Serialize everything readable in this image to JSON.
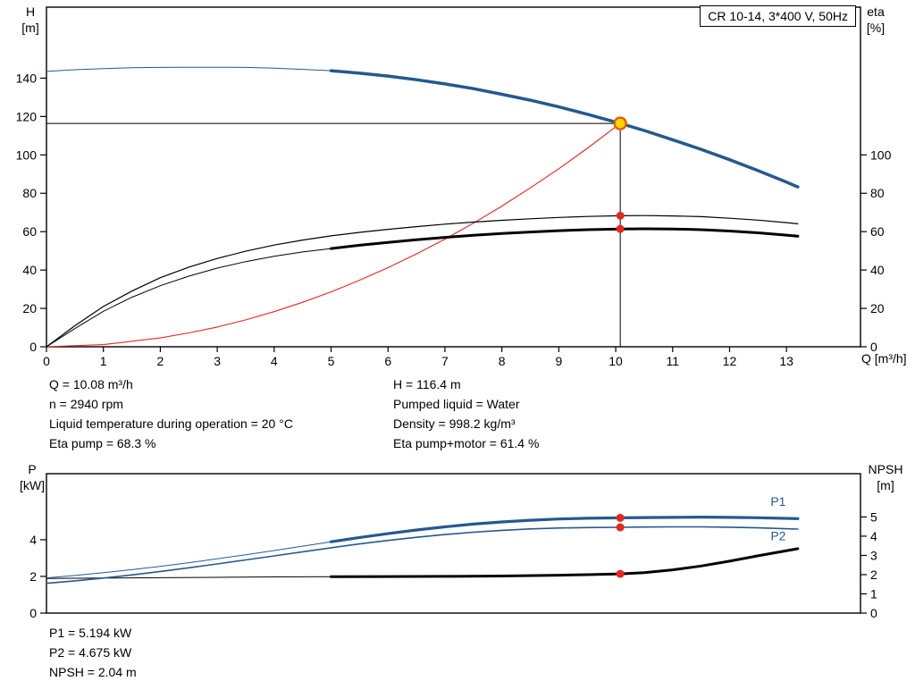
{
  "colors": {
    "blue": "#24598f",
    "black": "#000000",
    "red": "#e8251f",
    "duty_fill": "#ffd800",
    "duty_stroke": "#e85c00"
  },
  "info_top": {
    "left": [
      "Q = 10.08 m³/h",
      "n = 2940 rpm",
      "Liquid temperature during operation = 20 °C",
      "Eta pump = 68.3 %"
    ],
    "right": [
      "H = 116.4 m",
      "Pumped liquid = Water",
      "Density = 998.2 kg/m³",
      "Eta pump+motor = 61.4 %"
    ]
  },
  "info_bottom": [
    "P1 = 5.194 kW",
    "P2 = 4.675 kW",
    "NPSH = 2.04 m"
  ],
  "chart_data": [
    {
      "id": "qh-chart",
      "type": "line",
      "title": "CR 10-14, 3*400 V, 50Hz",
      "x_axis": {
        "label": "Q [m³/h]",
        "min": 0,
        "max": 14.3,
        "ticks": [
          0,
          1,
          2,
          3,
          4,
          5,
          6,
          7,
          8,
          9,
          10,
          11,
          12,
          13
        ]
      },
      "y_left": {
        "label_symbol": "H",
        "label_unit": "[m]",
        "min": 0,
        "max": 177,
        "ticks": [
          0,
          20,
          40,
          60,
          80,
          100,
          120,
          140
        ]
      },
      "y_right": {
        "label_symbol": "eta",
        "label_unit": "[%]",
        "min": 0,
        "max": 177,
        "ticks": [
          0,
          20,
          40,
          60,
          80,
          100
        ]
      },
      "duty_point": {
        "q": 10.08,
        "h": 116.4
      },
      "crosshair": {
        "q": 10.08,
        "v": 116.4
      },
      "series": [
        {
          "name": "system-curve",
          "color": "red",
          "width": 1.1,
          "axis": "left",
          "points": [
            [
              0,
              0
            ],
            [
              1,
              1.1
            ],
            [
              2,
              4.6
            ],
            [
              2.5,
              7.2
            ],
            [
              3,
              10.3
            ],
            [
              3.5,
              14.0
            ],
            [
              4,
              18.3
            ],
            [
              4.5,
              23.2
            ],
            [
              5,
              28.6
            ],
            [
              5.5,
              34.7
            ],
            [
              6,
              41.2
            ],
            [
              6.5,
              48.4
            ],
            [
              7,
              56.1
            ],
            [
              7.5,
              64.4
            ],
            [
              8,
              73.3
            ],
            [
              8.5,
              82.8
            ],
            [
              9,
              92.8
            ],
            [
              9.5,
              103.4
            ],
            [
              10.08,
              116.4
            ]
          ]
        },
        {
          "name": "eta-pump-motor-curve-thin",
          "color": "black",
          "width": 1,
          "axis": "left",
          "points": [
            [
              0,
              0
            ],
            [
              0.5,
              9.5
            ],
            [
              1,
              18.5
            ],
            [
              1.5,
              25.8
            ],
            [
              2,
              31.8
            ],
            [
              2.5,
              36.8
            ],
            [
              3,
              41
            ],
            [
              3.5,
              44.4
            ],
            [
              4,
              47.2
            ],
            [
              4.5,
              49.4
            ],
            [
              5,
              51.2
            ]
          ]
        },
        {
          "name": "eta-pump-motor-curve",
          "color": "black",
          "width": 3,
          "axis": "left",
          "points": [
            [
              5,
              51.2
            ],
            [
              5.5,
              52.9
            ],
            [
              6,
              54.4
            ],
            [
              6.5,
              55.8
            ],
            [
              7,
              57
            ],
            [
              7.5,
              58.1
            ],
            [
              8,
              59
            ],
            [
              8.5,
              59.8
            ],
            [
              9,
              60.5
            ],
            [
              9.5,
              61
            ],
            [
              10.08,
              61.4
            ],
            [
              10.5,
              61.5
            ],
            [
              11,
              61.4
            ],
            [
              11.5,
              61
            ],
            [
              12,
              60.3
            ],
            [
              12.5,
              59.4
            ],
            [
              13,
              58.2
            ],
            [
              13.2,
              57.6
            ]
          ]
        },
        {
          "name": "eta-pump-curve",
          "color": "black",
          "width": 1.2,
          "axis": "left",
          "points": [
            [
              0,
              0
            ],
            [
              0.5,
              11
            ],
            [
              1,
              21
            ],
            [
              1.5,
              29
            ],
            [
              2,
              36
            ],
            [
              2.5,
              41.5
            ],
            [
              3,
              46
            ],
            [
              3.5,
              49.8
            ],
            [
              4,
              53
            ],
            [
              4.5,
              55.6
            ],
            [
              5,
              57.8
            ],
            [
              5.5,
              59.6
            ],
            [
              6,
              61.2
            ],
            [
              6.5,
              62.6
            ],
            [
              7,
              63.9
            ],
            [
              7.5,
              65
            ],
            [
              8,
              65.9
            ],
            [
              8.5,
              66.7
            ],
            [
              9,
              67.4
            ],
            [
              9.5,
              67.9
            ],
            [
              10.08,
              68.3
            ],
            [
              10.5,
              68.4
            ],
            [
              11,
              68.2
            ],
            [
              11.5,
              67.8
            ],
            [
              12,
              67
            ],
            [
              12.5,
              66
            ],
            [
              13,
              64.7
            ],
            [
              13.2,
              64.1
            ]
          ]
        },
        {
          "name": "head-curve-thin",
          "color": "blue",
          "width": 1,
          "axis": "left",
          "points": [
            [
              0,
              143.5
            ],
            [
              0.5,
              144.4
            ],
            [
              1,
              145.0
            ],
            [
              1.5,
              145.4
            ],
            [
              2,
              145.6
            ],
            [
              2.5,
              145.7
            ],
            [
              3,
              145.7
            ],
            [
              3.5,
              145.6
            ],
            [
              4,
              145.2
            ],
            [
              4.5,
              144.6
            ],
            [
              5,
              143.9
            ]
          ]
        },
        {
          "name": "head-curve",
          "color": "blue",
          "width": 3.5,
          "axis": "left",
          "points": [
            [
              5,
              143.9
            ],
            [
              5.5,
              142.6
            ],
            [
              6,
              141.1
            ],
            [
              6.5,
              139.2
            ],
            [
              7,
              137.0
            ],
            [
              7.5,
              134.5
            ],
            [
              8,
              131.6
            ],
            [
              8.5,
              128.5
            ],
            [
              9,
              125.0
            ],
            [
              9.5,
              121.2
            ],
            [
              10.08,
              116.4
            ],
            [
              10.5,
              112.7
            ],
            [
              11,
              107.9
            ],
            [
              11.5,
              102.9
            ],
            [
              12,
              97.5
            ],
            [
              12.5,
              91.8
            ],
            [
              13,
              85.8
            ],
            [
              13.2,
              83.3
            ]
          ]
        }
      ],
      "markers": [
        {
          "type": "duty",
          "q": 10.08,
          "v": 116.4
        },
        {
          "type": "dot",
          "q": 10.08,
          "v": 68.3
        },
        {
          "type": "dot",
          "q": 10.08,
          "v": 61.4
        }
      ]
    },
    {
      "id": "power-chart",
      "type": "line",
      "x_axis": {
        "min": 0,
        "max": 14.3,
        "ticks": []
      },
      "y_left": {
        "label_symbol": "P",
        "label_unit": "[kW]",
        "min": 0,
        "max": 7.6,
        "ticks": [
          0,
          2,
          4
        ]
      },
      "y_right": {
        "label_symbol": "NPSH",
        "label_unit": "[m]",
        "min": 0,
        "max": 7.25,
        "ticks": [
          0,
          1,
          2,
          3,
          4,
          5
        ]
      },
      "series": [
        {
          "name": "npsh-curve-thin",
          "color": "black",
          "width": 1,
          "axis": "right",
          "points": [
            [
              0,
              1.8
            ],
            [
              1,
              1.82
            ],
            [
              2,
              1.84
            ],
            [
              3,
              1.86
            ],
            [
              4,
              1.88
            ],
            [
              5,
              1.89
            ]
          ]
        },
        {
          "name": "npsh-curve",
          "color": "black",
          "width": 3,
          "axis": "right",
          "points": [
            [
              5,
              1.89
            ],
            [
              6,
              1.9
            ],
            [
              7,
              1.91
            ],
            [
              8,
              1.93
            ],
            [
              9,
              1.97
            ],
            [
              9.5,
              2.0
            ],
            [
              10.08,
              2.04
            ],
            [
              10.5,
              2.1
            ],
            [
              11,
              2.25
            ],
            [
              11.5,
              2.45
            ],
            [
              12,
              2.7
            ],
            [
              12.5,
              2.98
            ],
            [
              13.2,
              3.35
            ]
          ]
        },
        {
          "name": "p2-curve",
          "color": "blue",
          "width": 1.6,
          "axis": "left",
          "points": [
            [
              0,
              1.62
            ],
            [
              0.5,
              1.76
            ],
            [
              1,
              1.91
            ],
            [
              1.5,
              2.08
            ],
            [
              2,
              2.27
            ],
            [
              2.5,
              2.47
            ],
            [
              3,
              2.68
            ],
            [
              3.5,
              2.9
            ],
            [
              4,
              3.12
            ],
            [
              4.5,
              3.34
            ],
            [
              5,
              3.56
            ],
            [
              5.5,
              3.77
            ],
            [
              6,
              3.96
            ],
            [
              6.5,
              4.13
            ],
            [
              7,
              4.28
            ],
            [
              7.5,
              4.41
            ],
            [
              8,
              4.51
            ],
            [
              8.5,
              4.59
            ],
            [
              9,
              4.64
            ],
            [
              9.5,
              4.66
            ],
            [
              10.08,
              4.675
            ],
            [
              10.5,
              4.69
            ],
            [
              11,
              4.7
            ],
            [
              11.5,
              4.7
            ],
            [
              12,
              4.68
            ],
            [
              12.5,
              4.65
            ],
            [
              13.2,
              4.58
            ]
          ]
        },
        {
          "name": "p1-curve-thin",
          "color": "blue",
          "width": 1,
          "axis": "left",
          "points": [
            [
              0,
              1.92
            ],
            [
              0.5,
              2.05
            ],
            [
              1,
              2.2
            ],
            [
              1.5,
              2.37
            ],
            [
              2,
              2.55
            ],
            [
              2.5,
              2.75
            ],
            [
              3,
              2.96
            ],
            [
              3.5,
              3.18
            ],
            [
              4,
              3.41
            ],
            [
              4.5,
              3.65
            ],
            [
              5,
              3.89
            ]
          ]
        },
        {
          "name": "p1-curve",
          "color": "blue",
          "width": 3.2,
          "axis": "left",
          "points": [
            [
              5,
              3.89
            ],
            [
              5.5,
              4.12
            ],
            [
              6,
              4.33
            ],
            [
              6.5,
              4.53
            ],
            [
              7,
              4.7
            ],
            [
              7.5,
              4.85
            ],
            [
              8,
              4.97
            ],
            [
              8.5,
              5.06
            ],
            [
              9,
              5.13
            ],
            [
              9.5,
              5.17
            ],
            [
              10.08,
              5.194
            ],
            [
              10.5,
              5.21
            ],
            [
              11,
              5.22
            ],
            [
              11.5,
              5.23
            ],
            [
              12,
              5.22
            ],
            [
              12.5,
              5.2
            ],
            [
              13.2,
              5.15
            ]
          ]
        }
      ],
      "annotations": [
        {
          "text": "P1",
          "q": 12.72,
          "v": 6.1,
          "color": "blue"
        },
        {
          "text": "P2",
          "q": 12.72,
          "v": 4.22,
          "color": "blue"
        }
      ],
      "markers": [
        {
          "type": "dot",
          "q": 10.08,
          "v": 5.194
        },
        {
          "type": "dot",
          "q": 10.08,
          "v": 4.675
        },
        {
          "type": "dot",
          "q": 10.08,
          "v": 2.04,
          "axis": "right"
        }
      ]
    }
  ]
}
